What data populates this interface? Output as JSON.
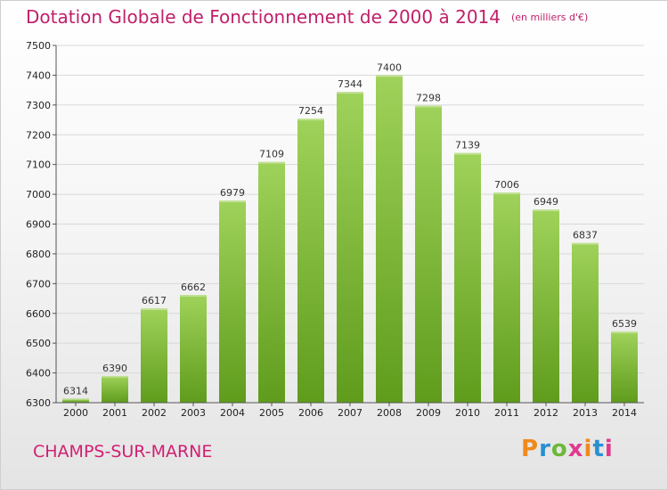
{
  "title": "Dotation Globale de Fonctionnement de 2000 à 2014",
  "subtitle": "(en milliers d'€)",
  "city": "CHAMPS-SUR-MARNE",
  "logo": {
    "letters": [
      "P",
      "r",
      "o",
      "x",
      "i",
      "t",
      "i"
    ],
    "colors": [
      "#f08a1c",
      "#2a8fd0",
      "#6cb83a",
      "#e03a8e",
      "#f08a1c",
      "#2a8fd0",
      "#e03a8e"
    ]
  },
  "colors": {
    "bar_top": "#9fd25a",
    "bar_bottom": "#5f9c1c",
    "title": "#c0206a"
  },
  "chart_data": {
    "type": "bar",
    "categories": [
      "2000",
      "2001",
      "2002",
      "2003",
      "2004",
      "2005",
      "2006",
      "2007",
      "2008",
      "2009",
      "2010",
      "2011",
      "2012",
      "2013",
      "2014"
    ],
    "values": [
      6314,
      6390,
      6617,
      6662,
      6979,
      7109,
      7254,
      7344,
      7400,
      7298,
      7139,
      7006,
      6949,
      6837,
      6539
    ],
    "y_ticks": [
      6300,
      6400,
      6500,
      6600,
      6700,
      6800,
      6900,
      7000,
      7100,
      7200,
      7300,
      7400,
      7500
    ],
    "ylim": [
      6300,
      7500
    ],
    "grid": true,
    "legend": "none"
  }
}
